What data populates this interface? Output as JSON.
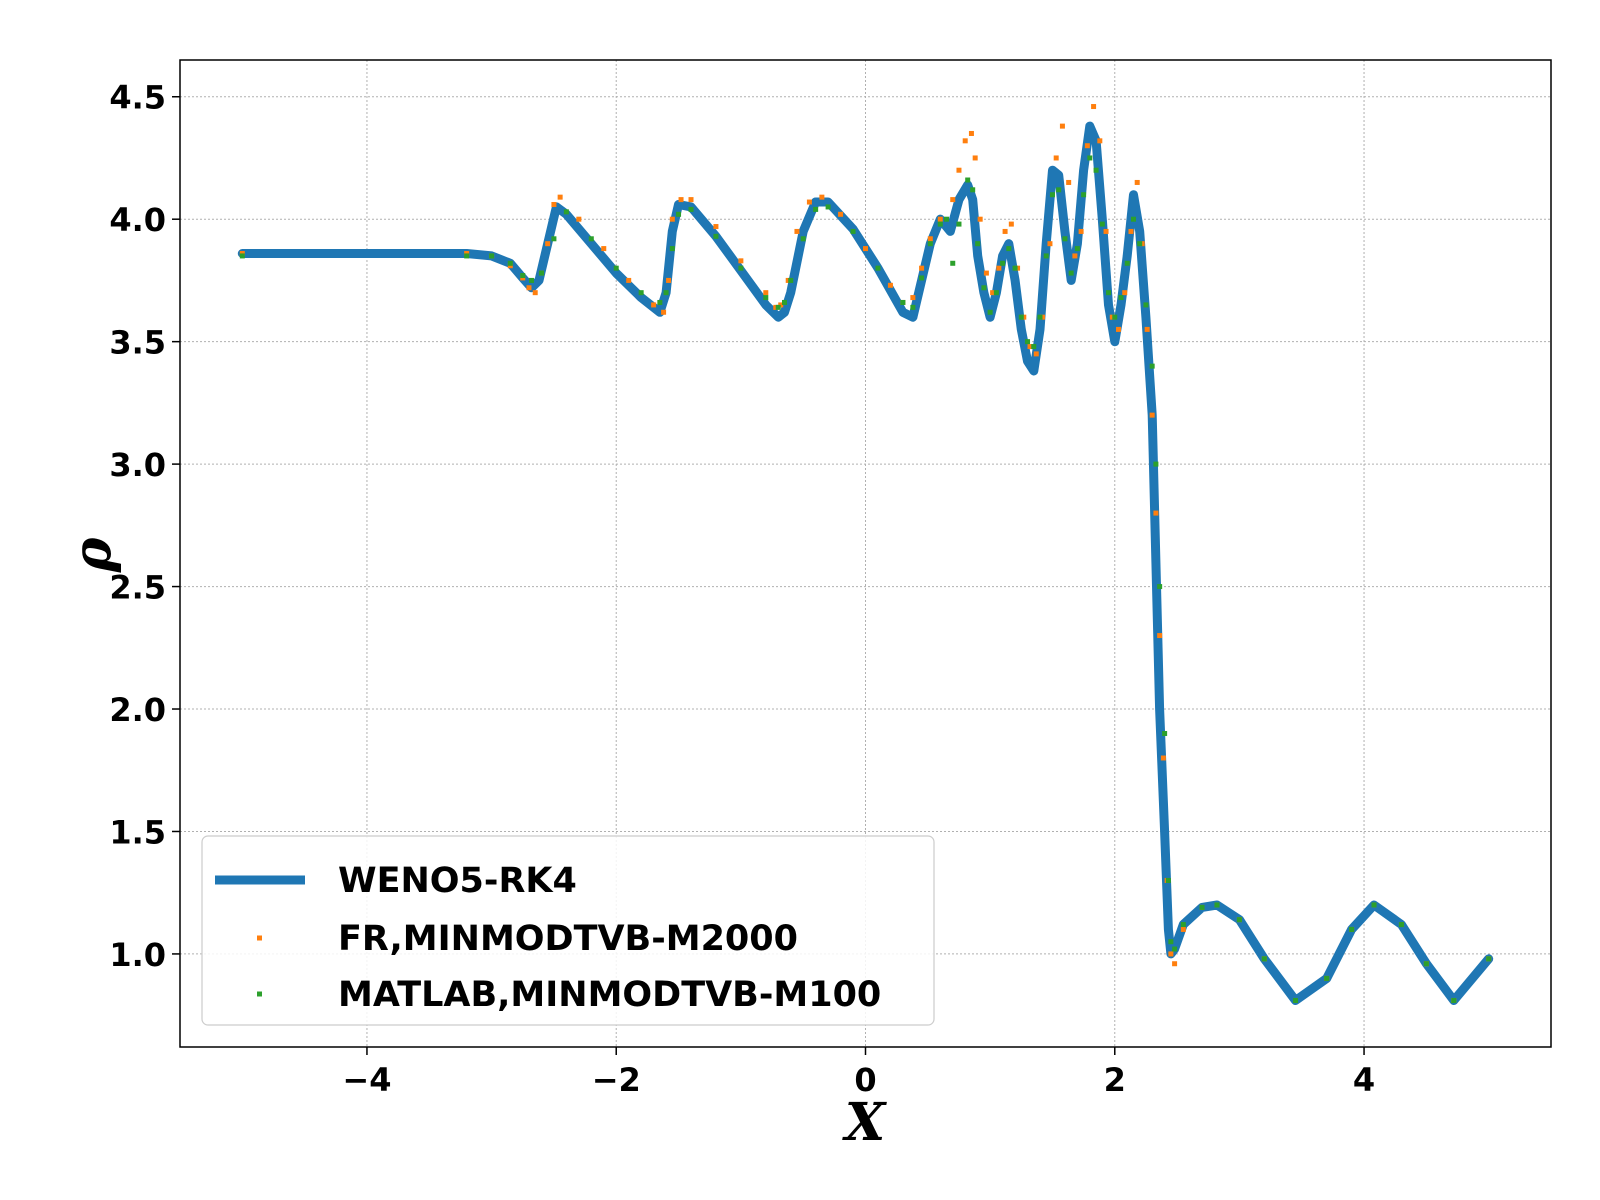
{
  "chart_data": {
    "type": "line",
    "title": "",
    "xlabel": "X",
    "ylabel": "ρ",
    "xlim": [
      -5.5,
      5.5
    ],
    "ylim": [
      0.62,
      4.65
    ],
    "xticks": [
      -4,
      -2,
      0,
      2,
      4
    ],
    "xtick_labels": [
      "−4",
      "−2",
      "0",
      "2",
      "4"
    ],
    "yticks": [
      1.0,
      1.5,
      2.0,
      2.5,
      3.0,
      3.5,
      4.0,
      4.5
    ],
    "ytick_labels": [
      "1.0",
      "1.5",
      "2.0",
      "2.5",
      "3.0",
      "3.5",
      "4.0",
      "4.5"
    ],
    "grid": true,
    "legend_position": "bottom-left",
    "series": [
      {
        "name": "WENO5-RK4",
        "style": "line",
        "color": "#1f77b4",
        "x": [
          -5.0,
          -3.2,
          -3.0,
          -2.85,
          -2.75,
          -2.68,
          -2.62,
          -2.55,
          -2.48,
          -2.4,
          -2.2,
          -2.0,
          -1.8,
          -1.65,
          -1.6,
          -1.55,
          -1.5,
          -1.4,
          -1.2,
          -1.0,
          -0.8,
          -0.7,
          -0.65,
          -0.6,
          -0.5,
          -0.4,
          -0.3,
          -0.1,
          0.1,
          0.3,
          0.38,
          0.45,
          0.52,
          0.6,
          0.68,
          0.75,
          0.82,
          0.86,
          0.9,
          0.95,
          1.0,
          1.05,
          1.1,
          1.15,
          1.2,
          1.25,
          1.3,
          1.35,
          1.4,
          1.45,
          1.5,
          1.55,
          1.6,
          1.65,
          1.7,
          1.75,
          1.8,
          1.85,
          1.9,
          1.95,
          2.0,
          2.05,
          2.1,
          2.15,
          2.2,
          2.25,
          2.3,
          2.33,
          2.36,
          2.4,
          2.43,
          2.45,
          2.48,
          2.55,
          2.7,
          2.82,
          3.0,
          3.2,
          3.45,
          3.7,
          3.9,
          4.08,
          4.3,
          4.5,
          4.72,
          5.0
        ],
        "y": [
          3.86,
          3.86,
          3.85,
          3.82,
          3.76,
          3.72,
          3.75,
          3.9,
          4.05,
          4.02,
          3.9,
          3.78,
          3.68,
          3.62,
          3.7,
          3.95,
          4.06,
          4.05,
          3.93,
          3.79,
          3.65,
          3.6,
          3.62,
          3.7,
          3.95,
          4.07,
          4.07,
          3.96,
          3.8,
          3.62,
          3.6,
          3.75,
          3.9,
          4.0,
          3.95,
          4.08,
          4.14,
          4.08,
          3.85,
          3.7,
          3.6,
          3.7,
          3.85,
          3.9,
          3.75,
          3.55,
          3.42,
          3.38,
          3.55,
          3.9,
          4.2,
          4.18,
          3.95,
          3.75,
          3.9,
          4.2,
          4.38,
          4.32,
          4.0,
          3.65,
          3.5,
          3.65,
          3.85,
          4.1,
          3.95,
          3.6,
          3.2,
          2.6,
          2.0,
          1.5,
          1.1,
          1.0,
          1.02,
          1.12,
          1.19,
          1.2,
          1.14,
          0.98,
          0.81,
          0.9,
          1.1,
          1.2,
          1.12,
          0.96,
          0.81,
          0.98
        ]
      },
      {
        "name": "FR,MINMODTVB-M2000",
        "style": "markers",
        "color": "#ff7f0e",
        "x": [
          -5.0,
          -3.2,
          -3.0,
          -2.85,
          -2.75,
          -2.7,
          -2.65,
          -2.6,
          -2.55,
          -2.5,
          -2.45,
          -2.3,
          -2.1,
          -1.9,
          -1.7,
          -1.62,
          -1.58,
          -1.55,
          -1.48,
          -1.4,
          -1.2,
          -1.0,
          -0.8,
          -0.72,
          -0.68,
          -0.62,
          -0.55,
          -0.45,
          -0.35,
          -0.2,
          0.0,
          0.2,
          0.3,
          0.38,
          0.45,
          0.52,
          0.6,
          0.7,
          0.75,
          0.8,
          0.85,
          0.88,
          0.92,
          0.97,
          1.02,
          1.07,
          1.12,
          1.17,
          1.22,
          1.27,
          1.32,
          1.37,
          1.42,
          1.48,
          1.53,
          1.58,
          1.63,
          1.68,
          1.73,
          1.78,
          1.83,
          1.88,
          1.93,
          1.98,
          2.03,
          2.08,
          2.13,
          2.18,
          2.22,
          2.26,
          2.3,
          2.33,
          2.36,
          2.39,
          2.42,
          2.45,
          2.48,
          2.55,
          2.7,
          2.82,
          3.0,
          3.2,
          3.45,
          3.7,
          3.9,
          4.08,
          4.3,
          4.5,
          4.72,
          5.0
        ],
        "y": [
          3.86,
          3.86,
          3.85,
          3.81,
          3.76,
          3.72,
          3.7,
          3.78,
          3.9,
          4.06,
          4.09,
          4.0,
          3.88,
          3.75,
          3.65,
          3.62,
          3.75,
          4.0,
          4.08,
          4.08,
          3.97,
          3.83,
          3.7,
          3.64,
          3.65,
          3.75,
          3.95,
          4.07,
          4.09,
          4.02,
          3.88,
          3.73,
          3.66,
          3.68,
          3.8,
          3.92,
          4.0,
          4.08,
          4.2,
          4.32,
          4.35,
          4.25,
          4.0,
          3.78,
          3.7,
          3.8,
          3.95,
          3.98,
          3.8,
          3.6,
          3.48,
          3.45,
          3.6,
          3.9,
          4.25,
          4.38,
          4.15,
          3.85,
          3.95,
          4.3,
          4.46,
          4.32,
          3.95,
          3.6,
          3.55,
          3.7,
          3.95,
          4.15,
          3.9,
          3.55,
          3.2,
          2.8,
          2.3,
          1.8,
          1.3,
          1.0,
          0.96,
          1.1,
          1.19,
          1.2,
          1.14,
          0.98,
          0.81,
          0.9,
          1.1,
          1.2,
          1.12,
          0.96,
          0.81,
          0.98
        ]
      },
      {
        "name": "MATLAB,MINMODTVB-M100",
        "style": "markers",
        "color": "#2ca02c",
        "x": [
          -5.0,
          -3.2,
          -3.0,
          -2.85,
          -2.75,
          -2.68,
          -2.6,
          -2.5,
          -2.4,
          -2.2,
          -2.0,
          -1.8,
          -1.65,
          -1.6,
          -1.55,
          -1.5,
          -1.4,
          -1.2,
          -1.0,
          -0.8,
          -0.7,
          -0.65,
          -0.6,
          -0.5,
          -0.4,
          -0.3,
          -0.1,
          0.1,
          0.3,
          0.38,
          0.45,
          0.52,
          0.6,
          0.65,
          0.7,
          0.75,
          0.82,
          0.86,
          0.9,
          0.95,
          1.0,
          1.05,
          1.1,
          1.15,
          1.2,
          1.25,
          1.3,
          1.35,
          1.4,
          1.45,
          1.5,
          1.55,
          1.6,
          1.65,
          1.7,
          1.75,
          1.8,
          1.85,
          1.9,
          1.95,
          2.0,
          2.05,
          2.1,
          2.15,
          2.2,
          2.25,
          2.3,
          2.33,
          2.36,
          2.4,
          2.43,
          2.45,
          2.48,
          2.55,
          2.7,
          2.82,
          3.0,
          3.2,
          3.45,
          3.7,
          3.9,
          4.08,
          4.3,
          4.5,
          4.72,
          5.0
        ],
        "y": [
          3.85,
          3.85,
          3.85,
          3.82,
          3.77,
          3.75,
          3.78,
          3.92,
          4.03,
          3.92,
          3.8,
          3.7,
          3.66,
          3.7,
          3.88,
          4.02,
          4.04,
          3.93,
          3.8,
          3.68,
          3.64,
          3.66,
          3.75,
          3.92,
          4.04,
          4.05,
          3.95,
          3.8,
          3.66,
          3.64,
          3.76,
          3.9,
          3.98,
          4.0,
          3.82,
          3.98,
          4.16,
          4.12,
          3.9,
          3.72,
          3.62,
          3.7,
          3.82,
          3.88,
          3.8,
          3.6,
          3.5,
          3.48,
          3.6,
          3.85,
          4.1,
          4.12,
          3.92,
          3.78,
          3.88,
          4.1,
          4.25,
          4.2,
          3.98,
          3.7,
          3.6,
          3.68,
          3.82,
          4.0,
          3.9,
          3.65,
          3.4,
          3.0,
          2.5,
          1.9,
          1.3,
          1.05,
          1.02,
          1.12,
          1.19,
          1.2,
          1.14,
          0.98,
          0.81,
          0.9,
          1.1,
          1.2,
          1.12,
          0.96,
          0.81,
          0.98
        ]
      }
    ]
  }
}
